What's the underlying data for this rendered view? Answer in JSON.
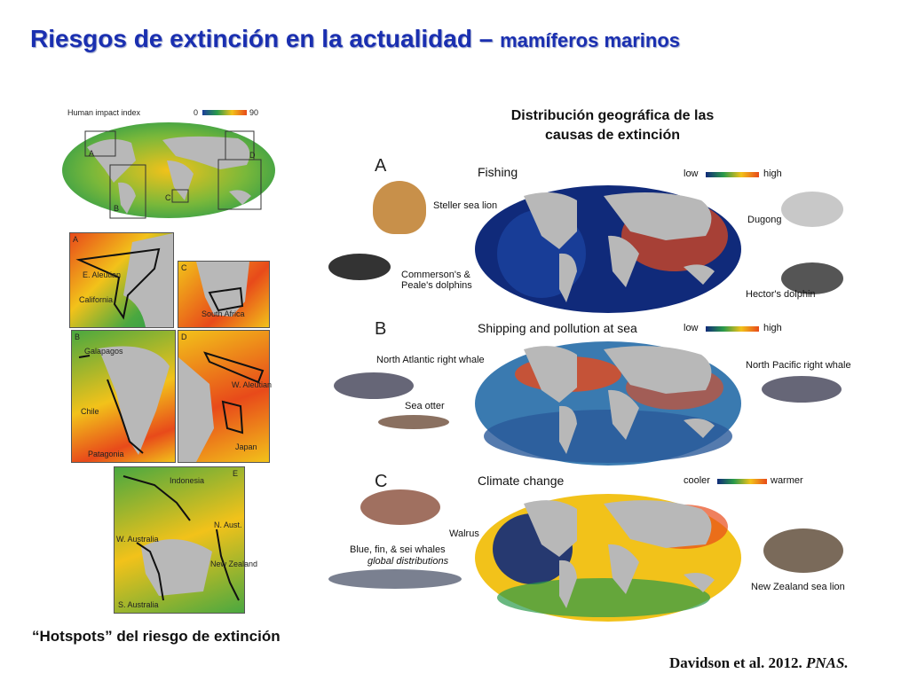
{
  "slide": {
    "title_main": "Riesgos de extinción en la actualidad –",
    "title_sub": "mamíferos marinos",
    "hotspot_caption": "“Hotspots” del riesgo de extinción",
    "citation_authors": "Davidson et al. 2012.",
    "citation_journal": "PNAS.",
    "distribution_title_line1": "Distribución geográfica de las",
    "distribution_title_line2": "causas de extinción"
  },
  "human_impact_map": {
    "legend_label": "Human impact index",
    "scale_min": "0",
    "scale_max": "90",
    "region_letters": [
      "A",
      "B",
      "C",
      "D"
    ]
  },
  "inset_maps": [
    {
      "letter": "A",
      "labels": [
        "E. Aleutian",
        "California"
      ]
    },
    {
      "letter": "C",
      "labels": [
        "South Africa"
      ]
    },
    {
      "letter": "B",
      "labels": [
        "Galapagos",
        "Chile",
        "Patagonia"
      ]
    },
    {
      "letter": "D",
      "labels": [
        "W. Aleutian",
        "Japan"
      ]
    },
    {
      "letter": "E",
      "labels": [
        "Indonesia",
        "N. Aust.",
        "W. Australia",
        "New Zealand",
        "S. Australia"
      ]
    }
  ],
  "cause_panels": [
    {
      "letter": "A",
      "title": "Fishing",
      "scale_low": "low",
      "scale_high": "high",
      "species": [
        "Steller sea lion",
        "Commerson's & Peale's dolphins",
        "Dugong",
        "Hector's dolphin"
      ]
    },
    {
      "letter": "B",
      "title": "Shipping and pollution at sea",
      "scale_low": "low",
      "scale_high": "high",
      "species": [
        "North Atlantic right whale",
        "Sea otter",
        "North Pacific right whale"
      ]
    },
    {
      "letter": "C",
      "title": "Climate change",
      "scale_low": "cooler",
      "scale_high": "warmer",
      "species": [
        "Walrus",
        "Blue, fin, & sei whales",
        "New Zealand sea lion"
      ],
      "species_note": "global distributions"
    }
  ],
  "colors": {
    "title": "#1a2fb0",
    "ocean_high": "#e84a1a",
    "ocean_mid": "#f2c21a",
    "ocean_low": "#2a9a4a",
    "ocean_deep": "#102a7a",
    "land": "#b8b8b8"
  }
}
